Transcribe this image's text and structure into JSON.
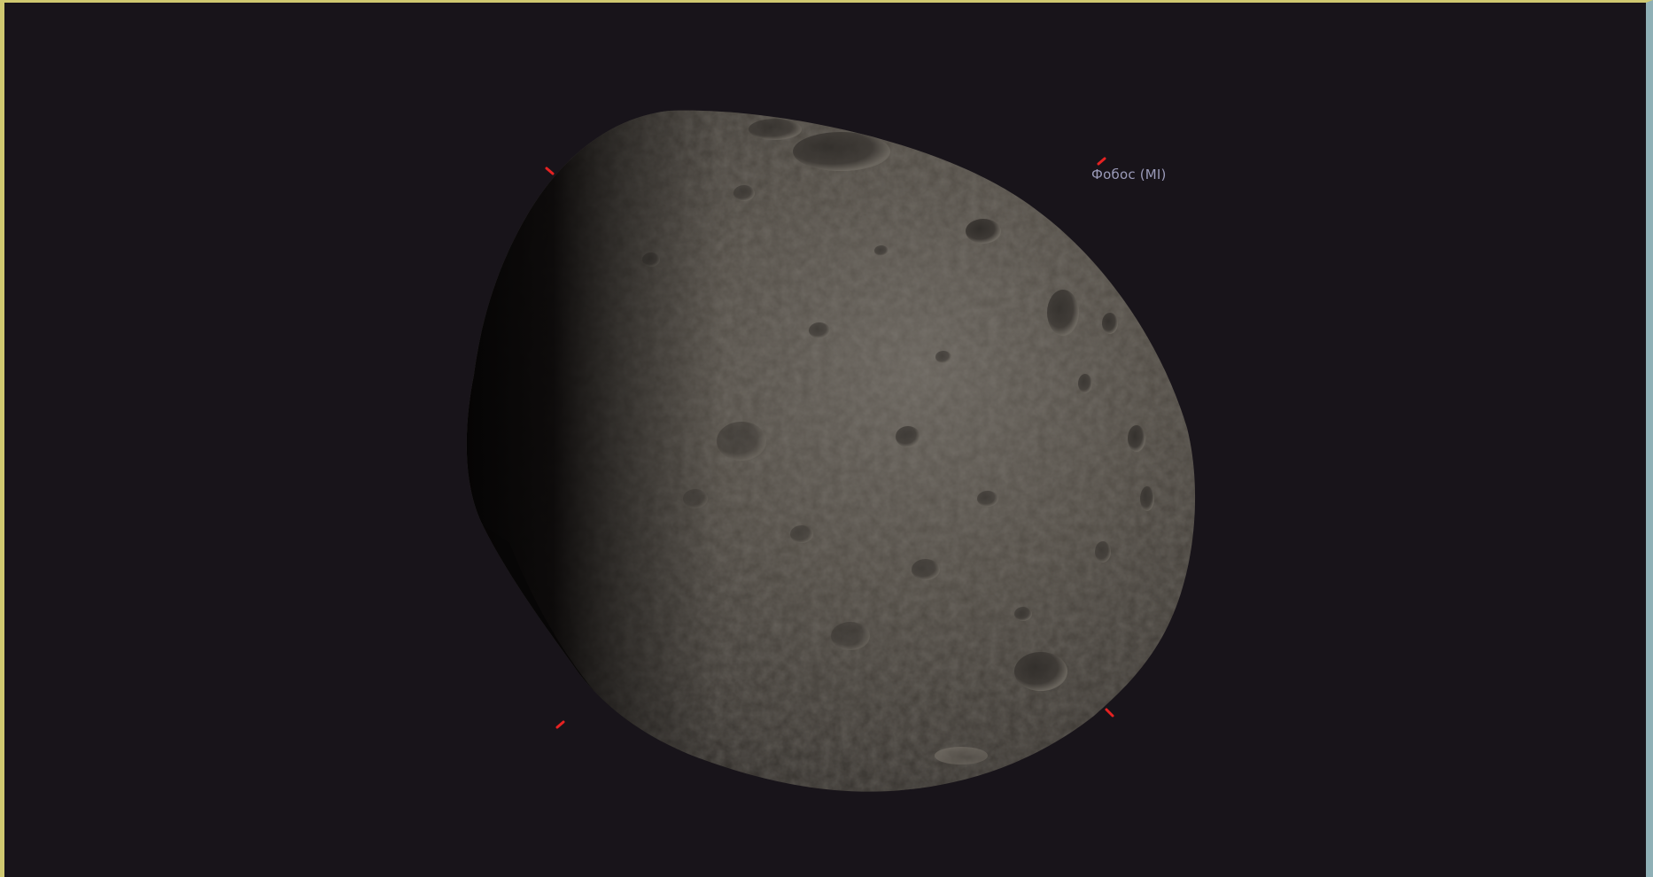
{
  "viewport": {
    "background_color": "#18141a",
    "frame_top_color": "#cfc870",
    "frame_right_color": "#8fb0b6"
  },
  "selection": {
    "label": "Фобос (MI)",
    "label_color": "#9a9ab8",
    "marker_color": "#e62222"
  },
  "body": {
    "surface_color": "#4e4a43",
    "shadow_color": "#0a0808"
  }
}
